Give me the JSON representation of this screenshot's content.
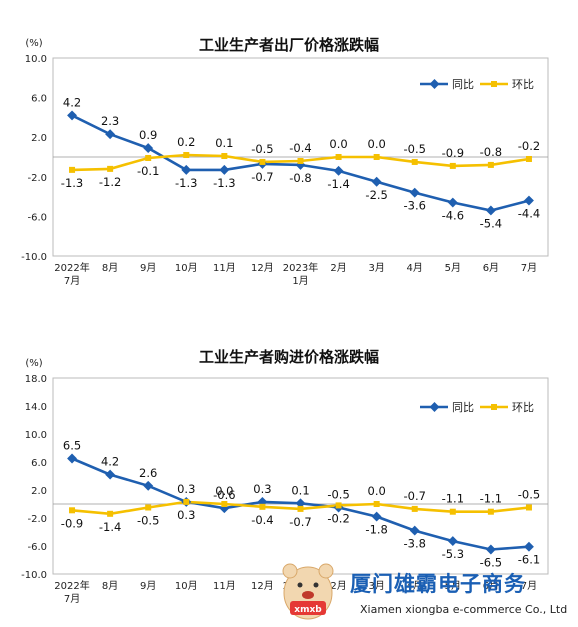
{
  "colors": {
    "yoy": "#1f5fb0",
    "mom": "#f5c000"
  },
  "chart_data": [
    {
      "type": "line",
      "title": "工业生产者出厂价格涨跌幅",
      "unit": "(%)",
      "categories": [
        "2022年\n7月",
        "8月",
        "9月",
        "10月",
        "11月",
        "12月",
        "2023年\n1月",
        "2月",
        "3月",
        "4月",
        "5月",
        "6月",
        "7月"
      ],
      "ylim": [
        -10,
        10
      ],
      "yticks": [
        "10.0",
        "6.0",
        "2.0",
        "-2.0",
        "-6.0",
        "-10.0"
      ],
      "ytick_values": [
        10,
        6,
        2,
        -2,
        -6,
        -10
      ],
      "legend": "top-right",
      "series": [
        {
          "name": "同比",
          "values": [
            4.2,
            2.3,
            0.9,
            -1.3,
            -1.3,
            -0.7,
            -0.8,
            -1.4,
            -2.5,
            -3.6,
            -4.6,
            -5.4,
            -4.4
          ]
        },
        {
          "name": "环比",
          "values": [
            -1.3,
            -1.2,
            -0.1,
            0.2,
            0.1,
            -0.5,
            -0.4,
            0.0,
            0.0,
            -0.5,
            -0.9,
            -0.8,
            -0.2
          ]
        }
      ]
    },
    {
      "type": "line",
      "title": "工业生产者购进价格涨跌幅",
      "unit": "(%)",
      "categories": [
        "2022年\n7月",
        "8月",
        "9月",
        "10月",
        "11月",
        "12月",
        "2023年\n1月",
        "2月",
        "3月",
        "4月",
        "5月",
        "6月",
        "7月"
      ],
      "ylim": [
        -10,
        18
      ],
      "yticks": [
        "18.0",
        "14.0",
        "10.0",
        "6.0",
        "2.0",
        "-2.0",
        "-6.0",
        "-10.0"
      ],
      "ytick_values": [
        18,
        14,
        10,
        6,
        2,
        -2,
        -6,
        -10
      ],
      "legend": "top-right",
      "series": [
        {
          "name": "同比",
          "values": [
            6.5,
            4.2,
            2.6,
            0.3,
            -0.6,
            0.3,
            0.1,
            -0.5,
            -1.8,
            -3.8,
            -5.3,
            -6.5,
            -6.1
          ]
        },
        {
          "name": "环比",
          "values": [
            -0.9,
            -1.4,
            -0.5,
            0.3,
            0.0,
            -0.4,
            -0.7,
            -0.2,
            0.0,
            -0.7,
            -1.1,
            -1.1,
            -0.5
          ]
        }
      ]
    }
  ],
  "watermark": {
    "name_cn": "厦门雄霸电子商务",
    "name_en": "Xiamen xiongba e-commerce Co., Ltd",
    "logo_icon": "bear-mascot-icon"
  }
}
